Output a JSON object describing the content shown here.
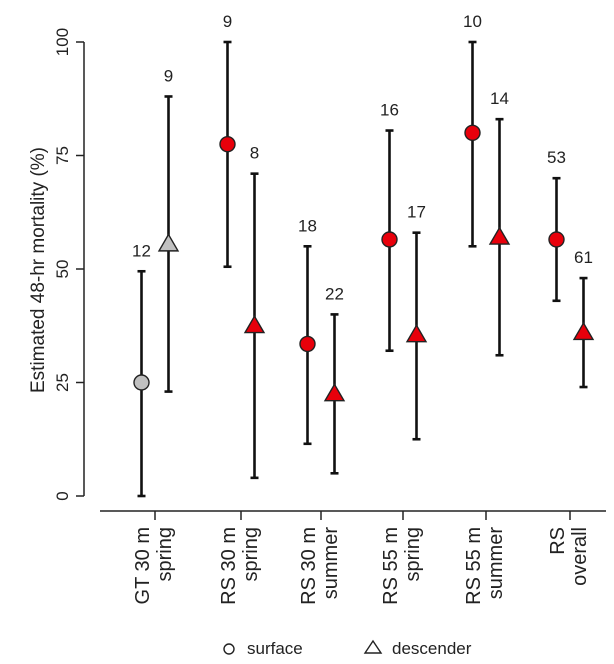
{
  "chart_data": {
    "type": "scatter",
    "ylabel": "Estimated 48-hr mortality (%)",
    "xlabel": "",
    "ylim": [
      0,
      100
    ],
    "yticks": [
      0,
      25,
      50,
      75,
      100
    ],
    "grid": false,
    "legend_position": "bottom",
    "legend": [
      {
        "label": "surface",
        "marker": "circle"
      },
      {
        "label": "descender",
        "marker": "triangle"
      }
    ],
    "categories": [
      {
        "line1": "GT 30 m",
        "line2": "spring"
      },
      {
        "line1": "RS 30 m",
        "line2": "spring"
      },
      {
        "line1": "RS 30 m",
        "line2": "summer"
      },
      {
        "line1": "RS 55 m",
        "line2": "spring"
      },
      {
        "line1": "RS 55 m",
        "line2": "summer"
      },
      {
        "line1": "RS",
        "line2": "overall"
      }
    ],
    "points": [
      {
        "category": 0,
        "method": "surface",
        "estimate": 25,
        "lower": 0,
        "upper": 49.5,
        "n": "12",
        "color": "#c0c0c0"
      },
      {
        "category": 0,
        "method": "descender",
        "estimate": 55.5,
        "lower": 23,
        "upper": 88,
        "n": "9",
        "color": "#c0c0c0"
      },
      {
        "category": 1,
        "method": "surface",
        "estimate": 77.5,
        "lower": 50.5,
        "upper": 100,
        "n": "9",
        "color": "#e8000b"
      },
      {
        "category": 1,
        "method": "descender",
        "estimate": 37.5,
        "lower": 4,
        "upper": 71,
        "n": "8",
        "color": "#e8000b"
      },
      {
        "category": 2,
        "method": "surface",
        "estimate": 33.5,
        "lower": 11.5,
        "upper": 55,
        "n": "18",
        "color": "#e8000b"
      },
      {
        "category": 2,
        "method": "descender",
        "estimate": 22.5,
        "lower": 5,
        "upper": 40,
        "n": "22",
        "color": "#e8000b"
      },
      {
        "category": 3,
        "method": "surface",
        "estimate": 56.5,
        "lower": 32,
        "upper": 80.5,
        "n": "16",
        "color": "#e8000b"
      },
      {
        "category": 3,
        "method": "descender",
        "estimate": 35.5,
        "lower": 12.5,
        "upper": 58,
        "n": "17",
        "color": "#e8000b"
      },
      {
        "category": 4,
        "method": "surface",
        "estimate": 80,
        "lower": 55,
        "upper": 100,
        "n": "10",
        "color": "#e8000b"
      },
      {
        "category": 4,
        "method": "descender",
        "estimate": 57,
        "lower": 31,
        "upper": 83,
        "n": "14",
        "color": "#e8000b"
      },
      {
        "category": 5,
        "method": "surface",
        "estimate": 56.5,
        "lower": 43,
        "upper": 70,
        "n": "53",
        "color": "#e8000b"
      },
      {
        "category": 5,
        "method": "descender",
        "estimate": 36,
        "lower": 24,
        "upper": 48,
        "n": "61",
        "color": "#e8000b"
      }
    ]
  }
}
